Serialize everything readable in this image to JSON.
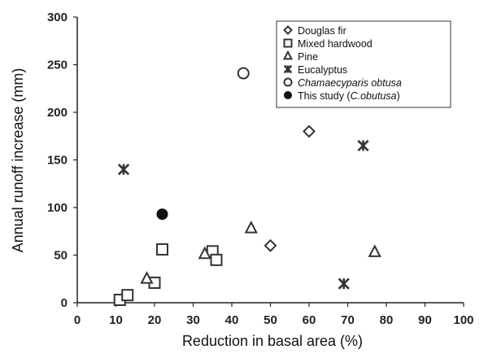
{
  "chart_data": {
    "type": "scatter",
    "title": "",
    "xlabel": "Reduction in basal area (%)",
    "ylabel": "Annual runoff increase (mm)",
    "xlim": [
      0,
      100
    ],
    "ylim": [
      0,
      300
    ],
    "x_ticks": [
      "0",
      "10",
      "20",
      "30",
      "40",
      "50",
      "60",
      "70",
      "80",
      "90",
      "100"
    ],
    "y_ticks": [
      "0",
      "50",
      "100",
      "150",
      "200",
      "250",
      "300"
    ],
    "grid": false,
    "legend_position": "top-right",
    "series": [
      {
        "name": "Douglas fir",
        "marker": "diamond",
        "color": "#333333",
        "points": [
          {
            "x": 50,
            "y": 60
          },
          {
            "x": 60,
            "y": 180
          }
        ]
      },
      {
        "name": "Mixed hardwood",
        "marker": "square",
        "color": "#333333",
        "points": [
          {
            "x": 11,
            "y": 3
          },
          {
            "x": 13,
            "y": 8
          },
          {
            "x": 20,
            "y": 21
          },
          {
            "x": 22,
            "y": 56
          },
          {
            "x": 35,
            "y": 54
          },
          {
            "x": 36,
            "y": 45
          }
        ]
      },
      {
        "name": "Pine",
        "marker": "triangle",
        "color": "#333333",
        "points": [
          {
            "x": 18,
            "y": 25
          },
          {
            "x": 33,
            "y": 51
          },
          {
            "x": 45,
            "y": 78
          },
          {
            "x": 77,
            "y": 53
          }
        ]
      },
      {
        "name": "Eucalyptus",
        "marker": "asterisk",
        "color": "#333333",
        "points": [
          {
            "x": 12,
            "y": 140
          },
          {
            "x": 69,
            "y": 20
          },
          {
            "x": 74,
            "y": 165
          }
        ]
      },
      {
        "name": "Chamaecyparis obtusa",
        "marker": "circle",
        "color": "#333333",
        "points": [
          {
            "x": 43,
            "y": 241
          }
        ]
      },
      {
        "name": "This study (C.obutusa)",
        "marker": "filled-circle",
        "color": "#111111",
        "points": [
          {
            "x": 22,
            "y": 93
          }
        ]
      }
    ]
  }
}
